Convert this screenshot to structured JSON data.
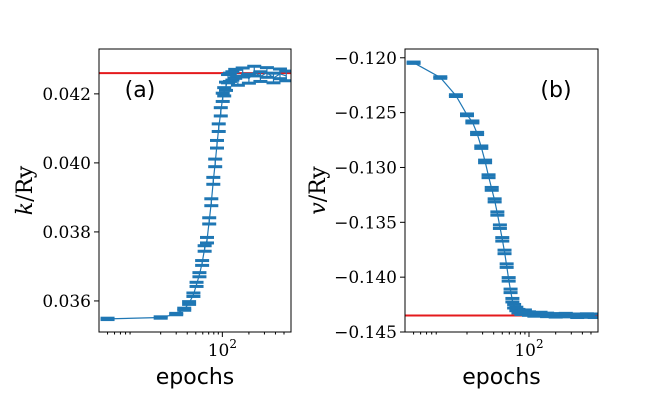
{
  "chart_data": [
    {
      "type": "line",
      "panel_label": "(a)",
      "xlabel": "epochs",
      "ylabel_main": "k",
      "ylabel_unit": "/Ry",
      "xscale": "log",
      "xlim": [
        4,
        600
      ],
      "ylim": [
        0.0351,
        0.0433
      ],
      "x_ticks": [
        {
          "value": 100,
          "base": "10",
          "exp": "2"
        }
      ],
      "y_ticks": [
        {
          "value": 0.036,
          "label": "0.036"
        },
        {
          "value": 0.038,
          "label": "0.038"
        },
        {
          "value": 0.04,
          "label": "0.040"
        },
        {
          "value": 0.042,
          "label": "0.042"
        }
      ],
      "reference_line": {
        "y": 0.0426,
        "color": "#e41a1c"
      },
      "series": [
        {
          "name": "k",
          "color": "#1f77b4",
          "x": [
            5,
            20,
            30,
            37,
            42,
            47,
            51,
            55,
            59,
            63,
            67,
            71,
            75,
            79,
            83,
            87,
            91,
            96,
            101,
            105,
            110,
            116,
            122,
            130,
            140,
            150,
            170,
            200,
            230,
            270,
            320,
            380,
            450,
            530
          ],
          "y": [
            0.03548,
            0.03552,
            0.03562,
            0.03576,
            0.03594,
            0.03618,
            0.03648,
            0.03676,
            0.0371,
            0.03752,
            0.03776,
            0.03832,
            0.03886,
            0.03948,
            0.04,
            0.04054,
            0.04102,
            0.04148,
            0.0419,
            0.04206,
            0.04222,
            0.04244,
            0.04248,
            0.04252,
            0.04258,
            0.04238,
            0.04262,
            0.04244,
            0.04266,
            0.0425,
            0.04262,
            0.04246,
            0.04258,
            0.04252
          ],
          "err": [
            2e-05,
            2e-05,
            2e-05,
            3e-05,
            4e-05,
            5e-05,
            6e-05,
            6e-05,
            7e-05,
            8e-05,
            8e-05,
            9e-05,
            0.0001,
            0.0001,
            0.00011,
            0.00011,
            0.00011,
            0.00012,
            0.00012,
            0.00012,
            0.00012,
            0.00012,
            0.00012,
            0.00012,
            0.00013,
            0.00013,
            0.00013,
            0.00013,
            0.00014,
            0.00014,
            0.00014,
            0.00014,
            0.00014,
            0.00014
          ]
        }
      ]
    },
    {
      "type": "line",
      "panel_label": "(b)",
      "xlabel": "epochs",
      "ylabel_main": "v",
      "ylabel_unit": "/Ry",
      "xscale": "log",
      "xlim": [
        4,
        600
      ],
      "ylim": [
        -0.145,
        -0.1192
      ],
      "x_ticks": [
        {
          "value": 100,
          "base": "10",
          "exp": "2"
        }
      ],
      "y_ticks": [
        {
          "value": -0.12,
          "label": "−0.120"
        },
        {
          "value": -0.125,
          "label": "−0.125"
        },
        {
          "value": -0.13,
          "label": "−0.130"
        },
        {
          "value": -0.135,
          "label": "−0.135"
        },
        {
          "value": -0.14,
          "label": "−0.140"
        },
        {
          "value": -0.145,
          "label": "−0.145"
        }
      ],
      "reference_line": {
        "y": -0.1435,
        "color": "#e41a1c"
      },
      "series": [
        {
          "name": "v",
          "color": "#1f77b4",
          "x": [
            5,
            10,
            15,
            20,
            23,
            26,
            29,
            32,
            35,
            38,
            41,
            44,
            47,
            50,
            53,
            56,
            59,
            62,
            65,
            68,
            72,
            76,
            82,
            90,
            100,
            115,
            135,
            160,
            200,
            260,
            350,
            450,
            550
          ],
          "y": [
            -0.12045,
            -0.1218,
            -0.12345,
            -0.1252,
            -0.12585,
            -0.1269,
            -0.12815,
            -0.12945,
            -0.1308,
            -0.13195,
            -0.133,
            -0.1342,
            -0.1354,
            -0.13655,
            -0.1377,
            -0.13895,
            -0.1402,
            -0.14125,
            -0.1421,
            -0.14265,
            -0.1429,
            -0.1431,
            -0.14325,
            -0.14315,
            -0.14332,
            -0.1434,
            -0.14336,
            -0.14344,
            -0.14348,
            -0.14346,
            -0.14352,
            -0.1435,
            -0.14352
          ],
          "err": [
            6e-05,
            7e-05,
            8e-05,
            8e-05,
            9e-05,
            0.0001,
            0.00011,
            0.00012,
            0.00013,
            0.00013,
            0.00014,
            0.00015,
            0.00016,
            0.00016,
            0.00016,
            0.00016,
            0.00016,
            0.00016,
            0.00016,
            0.00016,
            0.00016,
            0.00016,
            0.00016,
            0.00016,
            0.00016,
            0.00016,
            0.00016,
            0.00016,
            0.00016,
            0.00016,
            0.00016,
            0.00016,
            0.00016
          ]
        }
      ]
    }
  ]
}
